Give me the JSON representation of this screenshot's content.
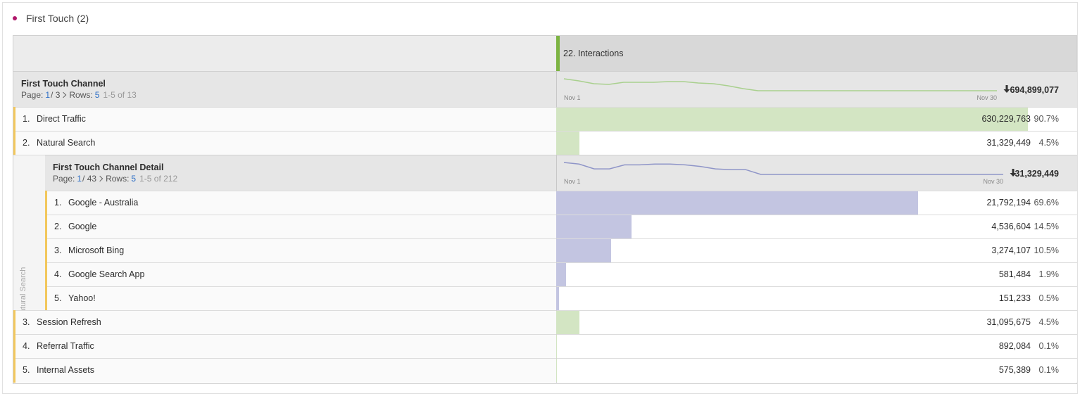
{
  "panel": {
    "title": "First Touch (2)"
  },
  "table": {
    "metric": "22. Interactions",
    "dimension": {
      "name": "First Touch Channel",
      "page_label": "Page:",
      "page": "1",
      "pages": "/ 3",
      "rows_label": "Rows:",
      "rows": "5",
      "range": "1-5 of 13",
      "start": "Nov 1",
      "end": "Nov 30",
      "total": "694,899,077",
      "trend": [
        17,
        14,
        10,
        9,
        12,
        12,
        12,
        13,
        13,
        11,
        10,
        7,
        3,
        0,
        0,
        0,
        0,
        0,
        0,
        0,
        0,
        0,
        0,
        0,
        0,
        0,
        0,
        0,
        0,
        0
      ],
      "bar_color": "#d3e5c3",
      "line_color": "#a9d08e"
    },
    "rows": [
      {
        "rank": "1.",
        "name": "Direct Traffic",
        "value": "630,229,763",
        "share": "90.7%"
      },
      {
        "rank": "2.",
        "name": "Natural Search",
        "value": "31,329,449",
        "share": "4.5%",
        "breakdown": {
          "label": "Natural Search",
          "dimension": {
            "name": "First Touch Channel Detail",
            "page_label": "Page:",
            "page": "1",
            "pages": "/ 43",
            "rows_label": "Rows:",
            "rows": "5",
            "range": "1-5 of 212",
            "start": "Nov 1",
            "end": "Nov 30",
            "total": "31,329,449",
            "trend": [
              15,
              13,
              7,
              7,
              12,
              12,
              13,
              13,
              12,
              10,
              7,
              6,
              6,
              0,
              0,
              0,
              0,
              0,
              0,
              0,
              0,
              0,
              0,
              0,
              0,
              0,
              0,
              0,
              0,
              0
            ],
            "bar_color": "#c3c5e1",
            "line_color": "#8f95c8"
          },
          "rows": [
            {
              "rank": "1.",
              "name": "Google - Australia",
              "value": "21,792,194",
              "share": "69.6%"
            },
            {
              "rank": "2.",
              "name": "Google",
              "value": "4,536,604",
              "share": "14.5%"
            },
            {
              "rank": "3.",
              "name": "Microsoft Bing",
              "value": "3,274,107",
              "share": "10.5%"
            },
            {
              "rank": "4.",
              "name": "Google Search App",
              "value": "581,484",
              "share": "1.9%"
            },
            {
              "rank": "5.",
              "name": "Yahoo!",
              "value": "151,233",
              "share": "0.5%"
            }
          ]
        }
      },
      {
        "rank": "3.",
        "name": "Session Refresh",
        "value": "31,095,675",
        "share": "4.5%"
      },
      {
        "rank": "4.",
        "name": "Referral Traffic",
        "value": "892,084",
        "share": "0.1%"
      },
      {
        "rank": "5.",
        "name": "Internal Assets",
        "value": "575,389",
        "share": "0.1%"
      }
    ]
  }
}
